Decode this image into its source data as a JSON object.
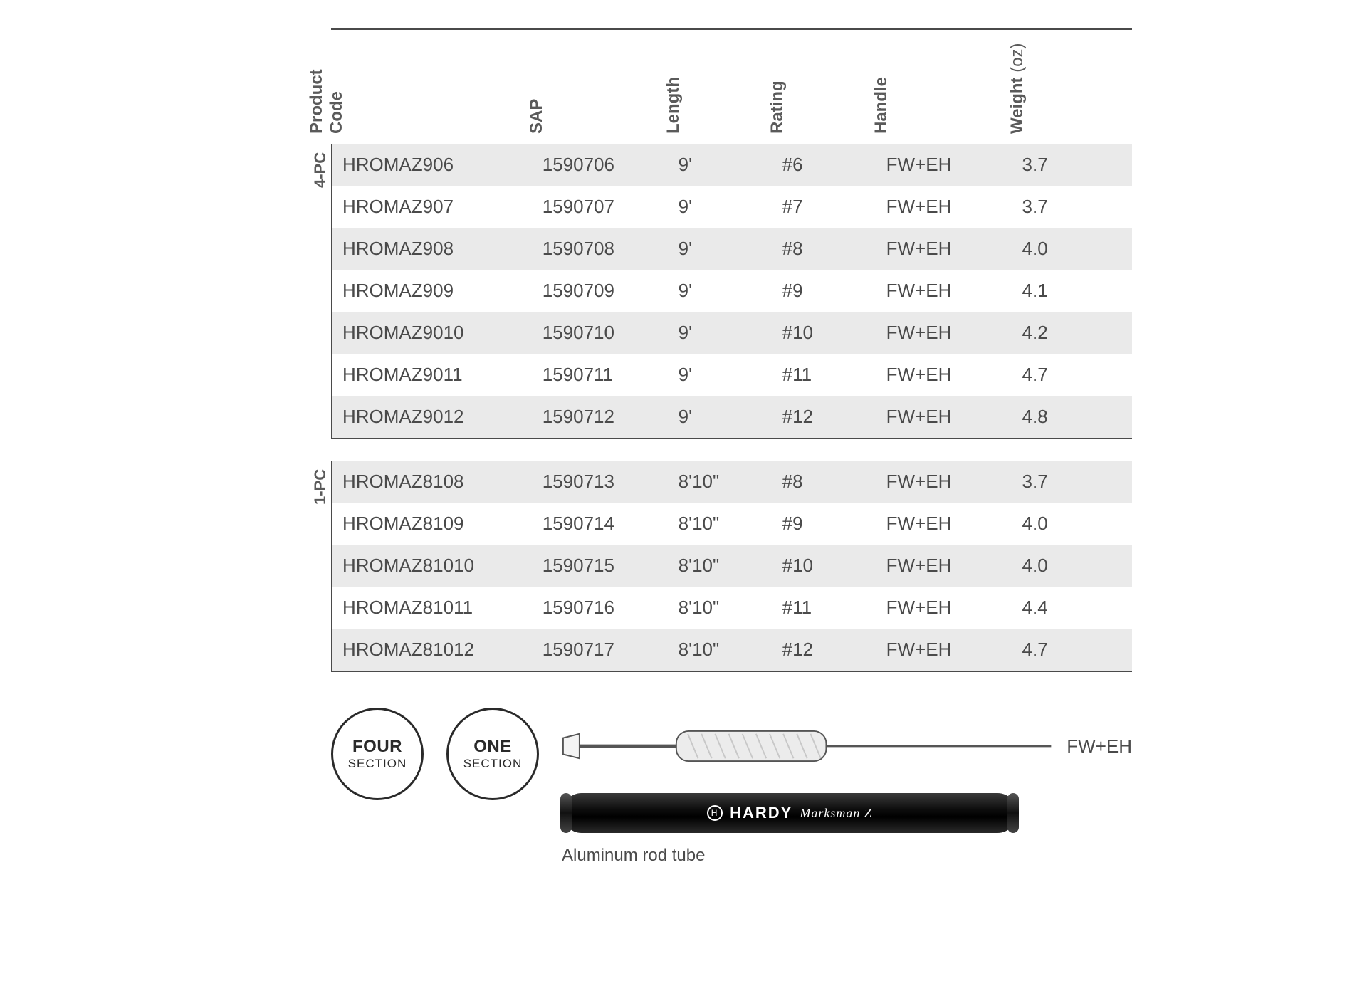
{
  "columns": [
    {
      "key": "code",
      "label": "Product\nCode"
    },
    {
      "key": "sap",
      "label": "SAP"
    },
    {
      "key": "length",
      "label": "Length"
    },
    {
      "key": "rating",
      "label": "Rating"
    },
    {
      "key": "handle",
      "label": "Handle"
    },
    {
      "key": "weight",
      "label": "Weight",
      "sublabel": "(oz)"
    }
  ],
  "groups": [
    {
      "label": "4-PC",
      "rows": [
        {
          "code": "HROMAZ906",
          "sap": "1590706",
          "length": "9'",
          "rating": "#6",
          "handle": "FW+EH",
          "weight": "3.7"
        },
        {
          "code": "HROMAZ907",
          "sap": "1590707",
          "length": "9'",
          "rating": "#7",
          "handle": "FW+EH",
          "weight": "3.7"
        },
        {
          "code": "HROMAZ908",
          "sap": "1590708",
          "length": "9'",
          "rating": "#8",
          "handle": "FW+EH",
          "weight": "4.0"
        },
        {
          "code": "HROMAZ909",
          "sap": "1590709",
          "length": "9'",
          "rating": "#9",
          "handle": "FW+EH",
          "weight": "4.1"
        },
        {
          "code": "HROMAZ9010",
          "sap": "1590710",
          "length": "9'",
          "rating": "#10",
          "handle": "FW+EH",
          "weight": "4.2"
        },
        {
          "code": "HROMAZ9011",
          "sap": "1590711",
          "length": "9'",
          "rating": "#11",
          "handle": "FW+EH",
          "weight": "4.7"
        },
        {
          "code": "HROMAZ9012",
          "sap": "1590712",
          "length": "9'",
          "rating": "#12",
          "handle": "FW+EH",
          "weight": "4.8"
        }
      ]
    },
    {
      "label": "1-PC",
      "rows": [
        {
          "code": "HROMAZ8108",
          "sap": "1590713",
          "length": "8'10\"",
          "rating": "#8",
          "handle": "FW+EH",
          "weight": "3.7"
        },
        {
          "code": "HROMAZ8109",
          "sap": "1590714",
          "length": "8'10\"",
          "rating": "#9",
          "handle": "FW+EH",
          "weight": "4.0"
        },
        {
          "code": "HROMAZ81010",
          "sap": "1590715",
          "length": "8'10\"",
          "rating": "#10",
          "handle": "FW+EH",
          "weight": "4.0"
        },
        {
          "code": "HROMAZ81011",
          "sap": "1590716",
          "length": "8'10\"",
          "rating": "#11",
          "handle": "FW+EH",
          "weight": "4.4"
        },
        {
          "code": "HROMAZ81012",
          "sap": "1590717",
          "length": "8'10\"",
          "rating": "#12",
          "handle": "FW+EH",
          "weight": "4.7"
        }
      ]
    }
  ],
  "badges": [
    {
      "big": "FOUR",
      "small": "SECTION"
    },
    {
      "big": "ONE",
      "small": "SECTION"
    }
  ],
  "rod_label": "FW+EH",
  "tube_brand": "HARDY",
  "tube_script": "Marksman Z",
  "tube_caption": "Aluminum rod tube",
  "colors": {
    "text": "#4a4a4a",
    "stripe": "#eaeaea",
    "border": "#4a4a4a",
    "badge_border": "#2a2a2a",
    "background": "#ffffff"
  },
  "column_widths_pct": {
    "code": 25,
    "sap": 17,
    "length": 13,
    "rating": 13,
    "handle": 17,
    "weight": 15
  }
}
